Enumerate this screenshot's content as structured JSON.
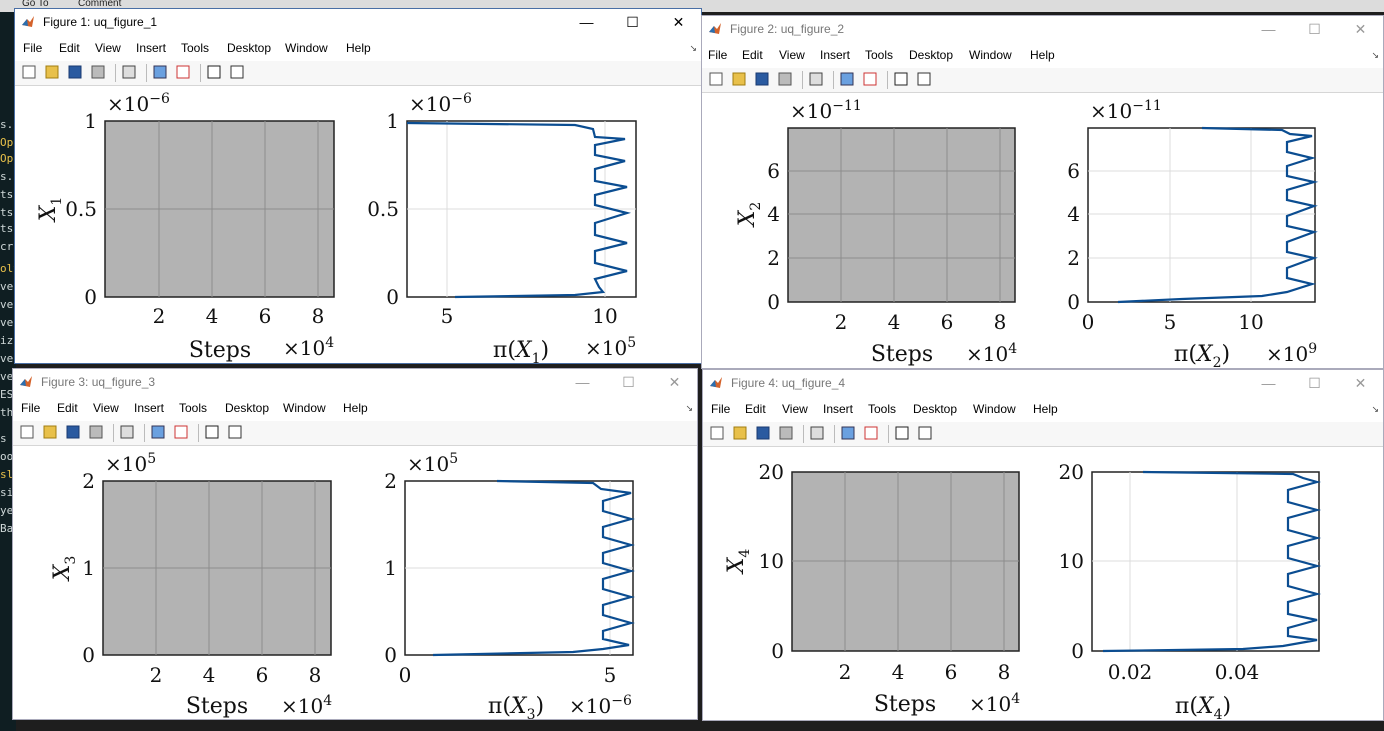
{
  "menus": [
    "File",
    "Edit",
    "View",
    "Insert",
    "Tools",
    "Desktop",
    "Window",
    "Help"
  ],
  "background": {
    "top_items": [
      "Go To",
      "Comment"
    ],
    "left_code": [
      "s.",
      "Op",
      "Op",
      "s.",
      "ts",
      "ts",
      "ts",
      "cr",
      "olv",
      "ve",
      "ve",
      "ve",
      "iz",
      "ve",
      "ve",
      "ES",
      "th",
      "s",
      "oo",
      "sl",
      "si",
      "ye",
      "Ba"
    ]
  },
  "windows": [
    {
      "title": "Figure 1: uq_figure_1",
      "trace": {
        "ylabel_base": "X",
        "ylabel_sub": "1",
        "yexp_base": "×10",
        "yexp_pow": "−6",
        "yticks": [
          "0",
          "0.5",
          "1"
        ],
        "xticks": [
          "2",
          "4",
          "6",
          "8"
        ],
        "xlabel": "Steps",
        "xexp_base": "×10",
        "xexp_pow": "4"
      },
      "hist": {
        "yexp_base": "×10",
        "yexp_pow": "−6",
        "yticks": [
          "0",
          "0.5",
          "1"
        ],
        "xticks": [
          "5",
          "10"
        ],
        "xlabel_pi": "π(",
        "xlabel_var": "X",
        "xlabel_sub": "1",
        "xlabel_close": ")",
        "xexp_base": "×10",
        "xexp_pow": "5"
      }
    },
    {
      "title": "Figure 2: uq_figure_2",
      "trace": {
        "ylabel_base": "X",
        "ylabel_sub": "2",
        "yexp_base": "×10",
        "yexp_pow": "−11",
        "yticks": [
          "0",
          "2",
          "4",
          "6"
        ],
        "xticks": [
          "2",
          "4",
          "6",
          "8"
        ],
        "xlabel": "Steps",
        "xexp_base": "×10",
        "xexp_pow": "4"
      },
      "hist": {
        "yexp_base": "×10",
        "yexp_pow": "−11",
        "yticks": [
          "0",
          "2",
          "4",
          "6"
        ],
        "xticks": [
          "0",
          "5",
          "10"
        ],
        "xlabel_pi": "π(",
        "xlabel_var": "X",
        "xlabel_sub": "2",
        "xlabel_close": ")",
        "xexp_base": "×10",
        "xexp_pow": "9"
      }
    },
    {
      "title": "Figure 3: uq_figure_3",
      "trace": {
        "ylabel_base": "X",
        "ylabel_sub": "3",
        "yexp_base": "×10",
        "yexp_pow": "5",
        "yticks": [
          "0",
          "1",
          "2"
        ],
        "xticks": [
          "2",
          "4",
          "6",
          "8"
        ],
        "xlabel": "Steps",
        "xexp_base": "×10",
        "xexp_pow": "4"
      },
      "hist": {
        "yexp_base": "×10",
        "yexp_pow": "5",
        "yticks": [
          "0",
          "1",
          "2"
        ],
        "xticks": [
          "0",
          "5"
        ],
        "xlabel_pi": "π(",
        "xlabel_var": "X",
        "xlabel_sub": "3",
        "xlabel_close": ")",
        "xexp_base": "×10",
        "xexp_pow": "−6"
      }
    },
    {
      "title": "Figure 4: uq_figure_4",
      "trace": {
        "ylabel_base": "X",
        "ylabel_sub": "4",
        "yexp_base": "",
        "yexp_pow": "",
        "yticks": [
          "0",
          "10",
          "20"
        ],
        "xticks": [
          "2",
          "4",
          "6",
          "8"
        ],
        "xlabel": "Steps",
        "xexp_base": "×10",
        "xexp_pow": "4"
      },
      "hist": {
        "yexp_base": "",
        "yexp_pow": "",
        "yticks": [
          "0",
          "10",
          "20"
        ],
        "xticks": [
          "0.02",
          "0.04"
        ],
        "xlabel_pi": "π(",
        "xlabel_var": "X",
        "xlabel_sub": "4",
        "xlabel_close": ")",
        "xexp_base": "",
        "xexp_pow": ""
      }
    }
  ]
}
